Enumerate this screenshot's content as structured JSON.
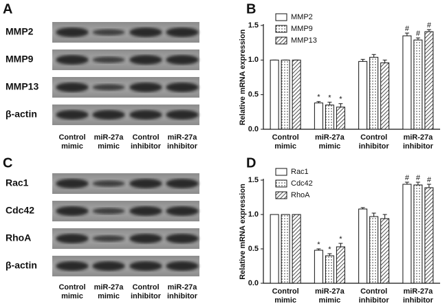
{
  "panels": [
    "A",
    "B",
    "C",
    "D"
  ],
  "blots": [
    {
      "rows": [
        "MMP2",
        "MMP9",
        "MMP13",
        "β-actin"
      ],
      "columns": [
        "Control mimic",
        "miR-27a mimic",
        "Control inhibitor",
        "miR-27a inhibitor"
      ]
    },
    {
      "rows": [
        "Rac1",
        "Cdc42",
        "RhoA",
        "β-actin"
      ],
      "columns": [
        "Control mimic",
        "miR-27a mimic",
        "Control inhibitor",
        "miR-27a inhibitor"
      ]
    }
  ],
  "chart_data": [
    {
      "type": "bar",
      "y_label": "Relative mRNA expression",
      "categories": [
        "Control mimic",
        "miR-27a mimic",
        "Control inhibitor",
        "miR-27a inhibitor"
      ],
      "series": [
        {
          "name": "MMP2",
          "color": "#ffffff",
          "pattern": "none",
          "values": [
            1.0,
            0.38,
            0.98,
            1.35
          ],
          "errors": [
            0,
            0.02,
            0.03,
            0.04
          ],
          "annotations": [
            null,
            "*",
            null,
            "#"
          ]
        },
        {
          "name": "MMP9",
          "color": "#ffffff",
          "pattern": "dots",
          "values": [
            1.0,
            0.35,
            1.04,
            1.29
          ],
          "errors": [
            0,
            0.04,
            0.04,
            0.03
          ],
          "annotations": [
            null,
            "*",
            null,
            "#"
          ]
        },
        {
          "name": "MMP13",
          "color": "#ffffff",
          "pattern": "hatch",
          "values": [
            1.0,
            0.32,
            0.96,
            1.41
          ],
          "errors": [
            0,
            0.05,
            0.04,
            0.03
          ],
          "annotations": [
            null,
            "*",
            null,
            "#"
          ]
        }
      ],
      "ylim": [
        0,
        1.5
      ],
      "yticks": [
        {
          "value": 0,
          "label": "0.0"
        },
        {
          "value": 0.5,
          "label": "0.5"
        },
        {
          "value": 1,
          "label": "1.0"
        },
        {
          "value": 1.5,
          "label": "1.5"
        }
      ],
      "legend": "top-left"
    },
    {
      "type": "bar",
      "y_label": "Relative mRNA expression",
      "categories": [
        "Control mimic",
        "miR-27a mimic",
        "Control inhibitor",
        "miR-27a inhibitor"
      ],
      "series": [
        {
          "name": "Rac1",
          "color": "#ffffff",
          "pattern": "none",
          "values": [
            1.0,
            0.48,
            1.08,
            1.44
          ],
          "errors": [
            0,
            0.02,
            0.02,
            0.03
          ],
          "annotations": [
            null,
            "*",
            null,
            "#"
          ]
        },
        {
          "name": "Cdc42",
          "color": "#ffffff",
          "pattern": "dots",
          "values": [
            1.0,
            0.4,
            0.97,
            1.43
          ],
          "errors": [
            0,
            0.03,
            0.05,
            0.04
          ],
          "annotations": [
            null,
            "*",
            null,
            "#"
          ]
        },
        {
          "name": "RhoA",
          "color": "#ffffff",
          "pattern": "hatch",
          "values": [
            1.0,
            0.53,
            0.94,
            1.39
          ],
          "errors": [
            0,
            0.05,
            0.06,
            0.05
          ],
          "annotations": [
            null,
            "*",
            null,
            "#"
          ]
        }
      ],
      "ylim": [
        0,
        1.5
      ],
      "yticks": [
        {
          "value": 0,
          "label": "0.0"
        },
        {
          "value": 0.5,
          "label": "0.5"
        },
        {
          "value": 1,
          "label": "1.0"
        },
        {
          "value": 1.5,
          "label": "1.5"
        }
      ],
      "legend": "top-left"
    }
  ]
}
